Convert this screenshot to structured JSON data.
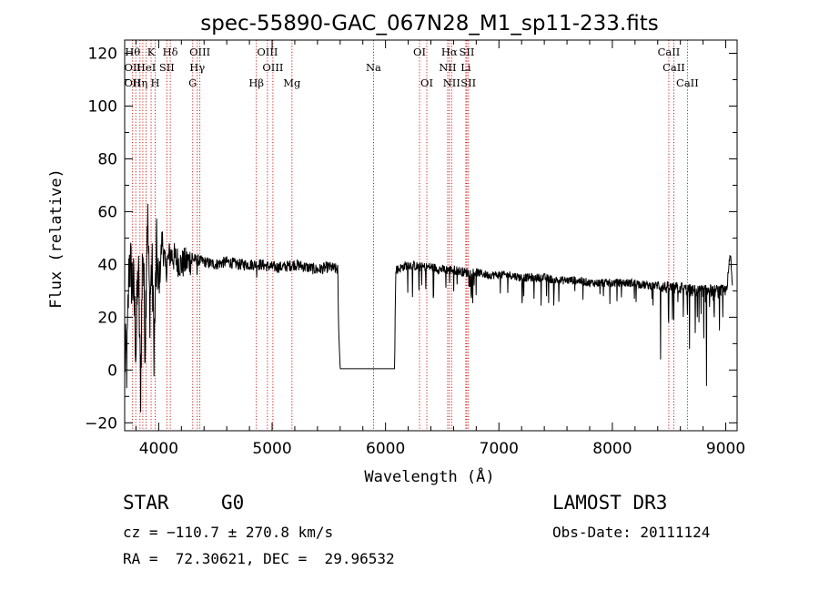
{
  "chart_data": {
    "type": "line",
    "title": "spec-55890-GAC_067N28_M1_sp11-233.fits",
    "xlabel": "Wavelength (Å)",
    "ylabel": "Flux (relative)",
    "xlim": [
      3700,
      9100
    ],
    "ylim": [
      -23,
      125
    ],
    "xticks": [
      4000,
      5000,
      6000,
      7000,
      8000,
      9000
    ],
    "yticks": [
      -20,
      0,
      20,
      40,
      60,
      80,
      100,
      120
    ],
    "grid": false,
    "spectrum_anchors": [
      [
        3700,
        5
      ],
      [
        3720,
        2
      ],
      [
        3740,
        42
      ],
      [
        3760,
        36
      ],
      [
        3780,
        30
      ],
      [
        3800,
        8
      ],
      [
        3820,
        40
      ],
      [
        3840,
        -8
      ],
      [
        3860,
        50
      ],
      [
        3880,
        10
      ],
      [
        3900,
        62
      ],
      [
        3920,
        24
      ],
      [
        3940,
        40
      ],
      [
        3960,
        8
      ],
      [
        3980,
        45
      ],
      [
        4000,
        30
      ],
      [
        4030,
        50
      ],
      [
        4060,
        38
      ],
      [
        4100,
        44
      ],
      [
        4200,
        40
      ],
      [
        4300,
        42
      ],
      [
        4400,
        41
      ],
      [
        4500,
        40
      ],
      [
        4600,
        41
      ],
      [
        4700,
        40
      ],
      [
        4800,
        40
      ],
      [
        4900,
        40
      ],
      [
        5000,
        39
      ],
      [
        5100,
        39
      ],
      [
        5200,
        40
      ],
      [
        5300,
        39
      ],
      [
        5400,
        38
      ],
      [
        5500,
        39
      ],
      [
        5580,
        38
      ],
      [
        5585,
        18
      ],
      [
        5600,
        0.5
      ],
      [
        6080,
        0.5
      ],
      [
        6090,
        38
      ],
      [
        6100,
        38
      ],
      [
        6150,
        39
      ],
      [
        6200,
        40
      ],
      [
        6300,
        39
      ],
      [
        6400,
        39
      ],
      [
        6500,
        38
      ],
      [
        6600,
        38
      ],
      [
        6700,
        37
      ],
      [
        6800,
        37
      ],
      [
        6900,
        36
      ],
      [
        7000,
        36
      ],
      [
        7100,
        36
      ],
      [
        7200,
        35
      ],
      [
        7300,
        35
      ],
      [
        7400,
        35
      ],
      [
        7500,
        34
      ],
      [
        7600,
        34
      ],
      [
        7700,
        34
      ],
      [
        7800,
        33
      ],
      [
        7900,
        33
      ],
      [
        8000,
        33
      ],
      [
        8100,
        33
      ],
      [
        8200,
        33
      ],
      [
        8300,
        32
      ],
      [
        8400,
        32
      ],
      [
        8500,
        31
      ],
      [
        8600,
        31
      ],
      [
        8700,
        30
      ],
      [
        8800,
        30
      ],
      [
        8900,
        30
      ],
      [
        9000,
        30
      ],
      [
        9020,
        35
      ],
      [
        9040,
        44
      ],
      [
        9060,
        31
      ]
    ],
    "dips": [
      [
        8425,
        4
      ],
      [
        8498,
        18
      ],
      [
        8542,
        19
      ],
      [
        8662,
        21
      ],
      [
        8680,
        8
      ],
      [
        8730,
        14
      ],
      [
        8750,
        20
      ],
      [
        8805,
        12
      ],
      [
        8830,
        -6
      ],
      [
        8900,
        20
      ],
      [
        8945,
        15
      ],
      [
        8975,
        20
      ],
      [
        7220,
        28
      ],
      [
        7310,
        27
      ],
      [
        7420,
        28
      ],
      [
        7920,
        28
      ],
      [
        8195,
        27
      ],
      [
        8350,
        27
      ],
      [
        6565,
        33
      ],
      [
        4865,
        35
      ],
      [
        4340,
        36
      ]
    ],
    "lines": [
      {
        "w": 3770,
        "labels": [
          {
            "row": 1,
            "text": "Hθ"
          },
          {
            "row": 2,
            "text": "OII"
          },
          {
            "row": 3,
            "text": "OII"
          }
        ]
      },
      {
        "w": 3798,
        "labels": []
      },
      {
        "w": 3835,
        "labels": [
          {
            "row": 3,
            "text": "Hη"
          }
        ]
      },
      {
        "w": 3860,
        "labels": []
      },
      {
        "w": 3889,
        "labels": [
          {
            "row": 2,
            "text": "HeI"
          }
        ]
      },
      {
        "w": 3933,
        "labels": [
          {
            "row": 1,
            "text": "K"
          }
        ]
      },
      {
        "w": 3969,
        "labels": [
          {
            "row": 3,
            "text": "H"
          }
        ]
      },
      {
        "w": 4072,
        "labels": [
          {
            "row": 2,
            "text": "SII"
          }
        ]
      },
      {
        "w": 4102,
        "labels": [
          {
            "row": 1,
            "text": "Hδ"
          }
        ]
      },
      {
        "w": 4300,
        "labels": [
          {
            "row": 3,
            "text": "G"
          }
        ]
      },
      {
        "w": 4340,
        "labels": [
          {
            "row": 2,
            "text": "Hγ"
          }
        ]
      },
      {
        "w": 4363,
        "labels": [
          {
            "row": 1,
            "text": "OIII"
          }
        ]
      },
      {
        "w": 4861,
        "labels": [
          {
            "row": 3,
            "text": "Hβ"
          }
        ]
      },
      {
        "w": 4959,
        "labels": [
          {
            "row": 1,
            "text": "OIII"
          }
        ]
      },
      {
        "w": 5007,
        "labels": [
          {
            "row": 2,
            "text": "OIII"
          }
        ]
      },
      {
        "w": 5175,
        "labels": [
          {
            "row": 3,
            "text": "Mg"
          }
        ]
      },
      {
        "w": 5894,
        "labels": [
          {
            "row": 2,
            "text": "Na"
          }
        ]
      },
      {
        "w": 6300,
        "labels": [
          {
            "row": 1,
            "text": "OI"
          }
        ]
      },
      {
        "w": 6364,
        "labels": [
          {
            "row": 3,
            "text": "OI"
          }
        ]
      },
      {
        "w": 6548,
        "labels": [
          {
            "row": 2,
            "text": "NII"
          }
        ]
      },
      {
        "w": 6563,
        "labels": [
          {
            "row": 1,
            "text": "Hα"
          }
        ]
      },
      {
        "w": 6583,
        "labels": [
          {
            "row": 3,
            "text": "NII"
          }
        ]
      },
      {
        "w": 6708,
        "labels": [
          {
            "row": 2,
            "text": "Li"
          }
        ]
      },
      {
        "w": 6717,
        "labels": [
          {
            "row": 1,
            "text": "SII"
          }
        ]
      },
      {
        "w": 6731,
        "labels": [
          {
            "row": 3,
            "text": "SII"
          }
        ]
      },
      {
        "w": 8498,
        "labels": [
          {
            "row": 1,
            "text": "CaII"
          }
        ]
      },
      {
        "w": 8542,
        "labels": [
          {
            "row": 2,
            "text": "CaII"
          }
        ]
      },
      {
        "w": 8662,
        "labels": [
          {
            "row": 3,
            "text": "CaII"
          }
        ]
      }
    ],
    "line_color": "#000000",
    "marker_color": "#cc0000"
  },
  "info": {
    "class": "STAR",
    "subclass": "G0",
    "survey": "LAMOST DR3",
    "cz": "cz = −110.7 ± 270.8 km/s",
    "obs_date": "Obs-Date: 20111124",
    "radec": "RA =  72.30621, DEC =  29.96532"
  }
}
